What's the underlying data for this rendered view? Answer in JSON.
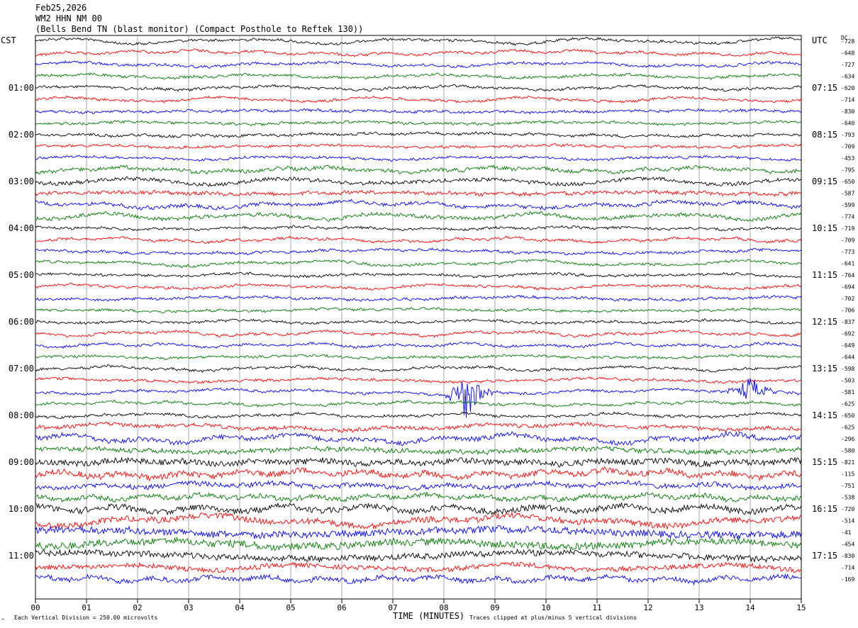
{
  "header": {
    "date": "Feb25,2026",
    "channel": "WM2 HHN NM 00",
    "site": "(Bells Bend TN (blast monitor) (Compact Posthole to Reftek 130))"
  },
  "left_timezone": "CST",
  "right_timezone": "UTC",
  "dc_header": "DC",
  "footer": {
    "scale_note": "Each Vertical Division =  250.00 microvolts",
    "clip_note": "Traces clipped at plus/minus 5 vertical divisions",
    "corner_mark": "^"
  },
  "colors": {
    "trace_cycle": [
      "#000000",
      "#ff0000",
      "#0000ff",
      "#007700"
    ],
    "grid": "#888888"
  },
  "chart_data": {
    "type": "line",
    "title": "Feb25,2026 WM2 HHN NM 00 (Bells Bend TN (blast monitor) (Compact Posthole to Reftek 130))",
    "xlabel": "TIME (MINUTES)",
    "ylabel": "",
    "x_ticks": [
      "00",
      "01",
      "02",
      "03",
      "04",
      "05",
      "06",
      "07",
      "08",
      "09",
      "10",
      "11",
      "12",
      "13",
      "14",
      "15"
    ],
    "xlim": [
      0,
      15
    ],
    "grid": true,
    "rows_per_hour": 4,
    "left_time_labels": [
      "01:00",
      "02:00",
      "03:00",
      "04:00",
      "05:00",
      "06:00",
      "07:00",
      "08:00",
      "09:00",
      "10:00",
      "11:00"
    ],
    "right_time_labels": [
      "07:15",
      "08:15",
      "09:15",
      "10:15",
      "11:15",
      "12:15",
      "13:15",
      "14:15",
      "15:15",
      "16:15",
      "17:15"
    ],
    "dc_offsets": [
      "-728",
      "-648",
      "-727",
      "-634",
      "-620",
      "-714",
      "-830",
      "-640",
      "-793",
      "-709",
      "-453",
      "-795",
      "-650",
      "-587",
      "-599",
      "-774",
      "-719",
      "-709",
      "-773",
      "-641",
      "-764",
      "-694",
      "-702",
      "-706",
      "-837",
      "-692",
      "-649",
      "-644",
      "-598",
      "-503",
      "-581",
      "-625",
      "-650",
      "-625",
      "-296",
      "-580",
      "-821",
      "-115",
      "-751",
      "-538",
      "-720",
      "-514",
      "-41",
      "-454",
      "-830",
      "-714",
      "-169"
    ],
    "row_noise": [
      2,
      2,
      2,
      2,
      2,
      2,
      2,
      2,
      2,
      2,
      2,
      3,
      3,
      3,
      3,
      3,
      2,
      2,
      2,
      2,
      2,
      2,
      2,
      2,
      2,
      2,
      2,
      2,
      2,
      2,
      2,
      2,
      2,
      3,
      4,
      4,
      5,
      5,
      4,
      4,
      5,
      5,
      6,
      6,
      5,
      4,
      4
    ],
    "events": [
      {
        "row": 30,
        "minute": 8.45,
        "amplitude": 5,
        "label": ""
      },
      {
        "row": 30,
        "minute": 14.0,
        "amplitude": 2.5,
        "label": ""
      }
    ]
  }
}
